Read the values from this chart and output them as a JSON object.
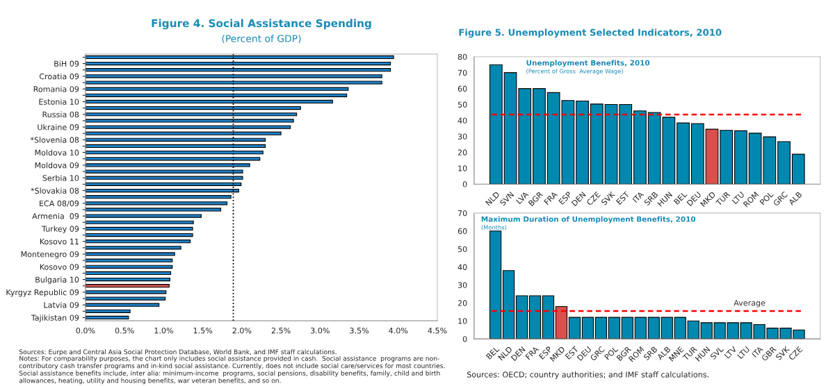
{
  "chart_data": [
    {
      "type": "bar",
      "orientation": "horizontal",
      "title": "Figure 4. Social Assistance Spending",
      "subtitle": "(Percent of GDP)",
      "categories": [
        null,
        "BiH 09",
        null,
        "Croatia 09",
        null,
        "Romania 09",
        null,
        "Estonia 10",
        null,
        "Russia 08",
        null,
        "Ukraine 09",
        null,
        "*Slovenia 08",
        null,
        "Moldova 10",
        null,
        "Moldova 09",
        null,
        "Serbia 10",
        null,
        "*Slovakia 08",
        null,
        "ECA 08/09",
        null,
        "Armenia  09",
        null,
        "Turkey 09",
        null,
        "Kosovo 11",
        null,
        "Montenegro 09",
        null,
        "Kosovo 09",
        null,
        "Bulgaria 10",
        null,
        "Kyrgyz Republic 09",
        null,
        "Latvia 09",
        null,
        "Tajikistan 09"
      ],
      "values": [
        3.94,
        3.9,
        3.9,
        3.79,
        3.79,
        3.36,
        3.34,
        3.16,
        2.75,
        2.7,
        2.66,
        2.62,
        2.5,
        2.3,
        2.3,
        2.27,
        2.23,
        2.1,
        2.01,
        2.01,
        1.99,
        1.96,
        1.86,
        1.81,
        1.73,
        1.48,
        1.38,
        1.37,
        1.37,
        1.34,
        1.22,
        1.14,
        1.11,
        1.11,
        1.09,
        1.08,
        1.07,
        1.03,
        1.02,
        0.94,
        0.57,
        0.55
      ],
      "colors": [
        "#1f80c6",
        "#1f80c6",
        "#1f80c6",
        "#1f80c6",
        "#1f80c6",
        "#1f80c6",
        "#1f80c6",
        "#1f80c6",
        "#1f80c6",
        "#1f80c6",
        "#1f80c6",
        "#1f80c6",
        "#1f80c6",
        "#1f80c6",
        "#1f80c6",
        "#1f80c6",
        "#1f80c6",
        "#1f80c6",
        "#1f80c6",
        "#1f80c6",
        "#1f80c6",
        "#1f80c6",
        "#1f80c6",
        "#1f80c6",
        "#1f80c6",
        "#1f80c6",
        "#1f80c6",
        "#1f80c6",
        "#1f80c6",
        "#1f80c6",
        "#1f80c6",
        "#1f80c6",
        "#1f80c6",
        "#1f80c6",
        "#1f80c6",
        "#1f80c6",
        "#d9534f",
        "#1f80c6",
        "#1f80c6",
        "#1f80c6",
        "#1f80c6",
        "#1f80c6"
      ],
      "xlim": [
        0,
        4.5
      ],
      "xticks": [
        {
          "value": 0,
          "label": "0.0%"
        },
        {
          "value": 0.5,
          "label": "0.5%"
        },
        {
          "value": 1,
          "label": "1.0%"
        },
        {
          "value": 1.5,
          "label": "1.5%"
        },
        {
          "value": 2,
          "label": "2.0%"
        },
        {
          "value": 2.5,
          "label": "2.5%"
        },
        {
          "value": 3,
          "label": "3.0%"
        },
        {
          "value": 3.5,
          "label": "3.5%"
        },
        {
          "value": 4,
          "label": "4.0%"
        },
        {
          "value": 4.5,
          "label": "4.5%"
        }
      ],
      "ref_lines": [
        {
          "axis": "x",
          "value": 1.89,
          "color": "#000000",
          "line_style": "dotted"
        }
      ],
      "annotations": [
        "Sources: Eurpe and Central Asia Social Protection Database, World Bank, and IMF staff calculations.",
        "Notes: For comparability purposes, the chart only includes social assistance provided in cash.  Social assistance  programs are non-\ncontributory cash transfer programs and in-kind social assistance. Currently, does not include social care/services for most countries.\nSocial assistance benefits include, inter alia: minimum-income  programs, social pensions, disability benefits, family, child and birth\nallowances, heating, utility and housing benefits, war veteran benefits, and so on."
      ]
    },
    {
      "type": "bar",
      "title": "Unemployment Benefits, 2010",
      "subtitle": "(Percent of Gross  Average Wage)",
      "categories": [
        "NLD",
        "SVN",
        "LVA",
        "BGR",
        "FRA",
        "ESP",
        "DEN",
        "CZE",
        "SVK",
        "EST",
        "ITA",
        "SRB",
        "HUN",
        "BEL",
        "DEU",
        "MKD",
        "TUR",
        "LTU",
        "ROM",
        "POL",
        "GRC",
        "ALB"
      ],
      "values": [
        75,
        70,
        60,
        60,
        57.5,
        52.5,
        52.2,
        50.3,
        50,
        50,
        46,
        45,
        42,
        38.4,
        38,
        34.5,
        33.8,
        33.5,
        32,
        29.7,
        26.7,
        18.8
      ],
      "colors": [
        "#0089b0",
        "#0089b0",
        "#0089b0",
        "#0089b0",
        "#0089b0",
        "#0089b0",
        "#0089b0",
        "#0089b0",
        "#0089b0",
        "#0089b0",
        "#0089b0",
        "#0089b0",
        "#0089b0",
        "#0089b0",
        "#0089b0",
        "#d9504c",
        "#0089b0",
        "#0089b0",
        "#0089b0",
        "#0089b0",
        "#0089b0",
        "#0089b0"
      ],
      "ylim": [
        0,
        80
      ],
      "yticks": [
        0,
        10,
        20,
        30,
        40,
        50,
        60,
        70,
        80
      ],
      "ref_lines": [
        {
          "axis": "y",
          "value": 43.7,
          "color": "#ff0000",
          "line_style": "dashed"
        }
      ],
      "annotations": [
        "Figure 5. Unemployment Selected Indicators, 2010"
      ]
    },
    {
      "type": "bar",
      "title": "Maximum Duration of Unemployment Benefits, 2010",
      "subtitle": "(Months)",
      "categories": [
        "BEL",
        "NLD",
        "DEN",
        "FRA",
        "ESP",
        "MKD",
        "EST",
        "DEU",
        "GRC",
        "POL",
        "BGR",
        "ROM",
        "SRB",
        "ALB",
        "MNE",
        "TUR",
        "HUN",
        "SVL",
        "LTV",
        "LTU",
        "ITA",
        "GBR",
        "SVK",
        "CZE"
      ],
      "values": [
        60,
        38,
        24,
        24,
        24,
        18,
        12,
        12,
        12,
        12,
        12,
        12,
        12,
        12,
        12,
        10,
        9,
        9,
        9,
        9,
        8,
        6,
        6,
        5
      ],
      "colors": [
        "#0089b0",
        "#0089b0",
        "#0089b0",
        "#0089b0",
        "#0089b0",
        "#d9504c",
        "#0089b0",
        "#0089b0",
        "#0089b0",
        "#0089b0",
        "#0089b0",
        "#0089b0",
        "#0089b0",
        "#0089b0",
        "#0089b0",
        "#0089b0",
        "#0089b0",
        "#0089b0",
        "#0089b0",
        "#0089b0",
        "#0089b0",
        "#0089b0",
        "#0089b0",
        "#0089b0"
      ],
      "ylim": [
        0,
        70
      ],
      "yticks": [
        0,
        10,
        20,
        30,
        40,
        50,
        60,
        70
      ],
      "ref_lines": [
        {
          "axis": "y",
          "value": 15.5,
          "color": "#ff0000",
          "line_style": "dashed",
          "label": "Average"
        }
      ],
      "annotations": [
        "Sources: OECD; country authorities; and IMF staff calculations."
      ]
    }
  ]
}
